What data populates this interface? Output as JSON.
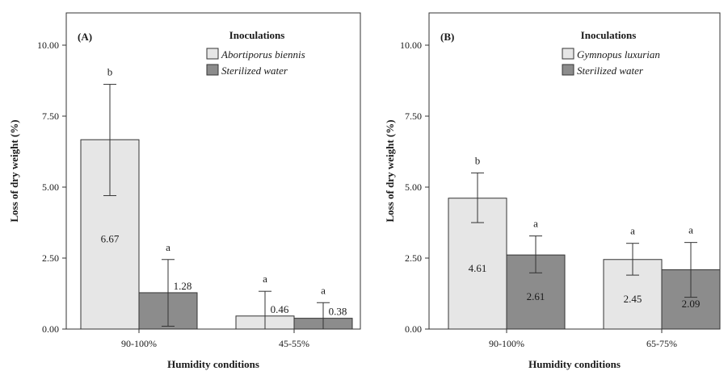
{
  "chart_data": [
    {
      "type": "bar",
      "panel_label": "(A)",
      "categories": [
        "90-100%",
        "45-55%"
      ],
      "xlabel": "Humidity conditions",
      "ylabel": "Loss of dry weight (%)",
      "ylim": [
        0,
        10
      ],
      "yticks": [
        "0.00",
        "2.50",
        "5.00",
        "7.50",
        "10.00"
      ],
      "yticks_values": [
        0,
        2.5,
        5,
        7.5,
        10
      ],
      "legend_title": "Inoculations",
      "legend_position": "top-right",
      "series": [
        {
          "name": "Abortiporus biennis",
          "color": "#e6e6e6",
          "values": [
            6.67,
            0.46
          ],
          "value_labels": [
            "6.67",
            "0.46"
          ],
          "err_low": [
            4.7,
            0.0
          ],
          "err_high": [
            8.62,
            1.33
          ],
          "letters": [
            "b",
            "a"
          ]
        },
        {
          "name": "Sterilized water",
          "color": "#8c8c8c",
          "values": [
            1.28,
            0.38
          ],
          "value_labels": [
            "1.28",
            "0.38"
          ],
          "err_low": [
            0.1,
            0.0
          ],
          "err_high": [
            2.45,
            0.93
          ],
          "letters": [
            "a",
            "a"
          ]
        }
      ]
    },
    {
      "type": "bar",
      "panel_label": "(B)",
      "categories": [
        "90-100%",
        "65-75%"
      ],
      "xlabel": "Humidity conditions",
      "ylabel": "Loss of dry weight (%)",
      "ylim": [
        0,
        10
      ],
      "yticks": [
        "0.00",
        "2.50",
        "5.00",
        "7.50",
        "10.00"
      ],
      "yticks_values": [
        0,
        2.5,
        5,
        7.5,
        10
      ],
      "legend_title": "Inoculations",
      "legend_position": "top-right",
      "series": [
        {
          "name": "Gymnopus luxurian",
          "color": "#e6e6e6",
          "values": [
            4.61,
            2.45
          ],
          "value_labels": [
            "4.61",
            "2.45"
          ],
          "err_low": [
            3.75,
            1.9
          ],
          "err_high": [
            5.5,
            3.02
          ],
          "letters": [
            "b",
            "a"
          ]
        },
        {
          "name": "Sterilized water",
          "color": "#8c8c8c",
          "values": [
            2.61,
            2.09
          ],
          "value_labels": [
            "2.61",
            "2.09"
          ],
          "err_low": [
            1.98,
            1.12
          ],
          "err_high": [
            3.28,
            3.05
          ],
          "letters": [
            "a",
            "a"
          ]
        }
      ]
    }
  ]
}
